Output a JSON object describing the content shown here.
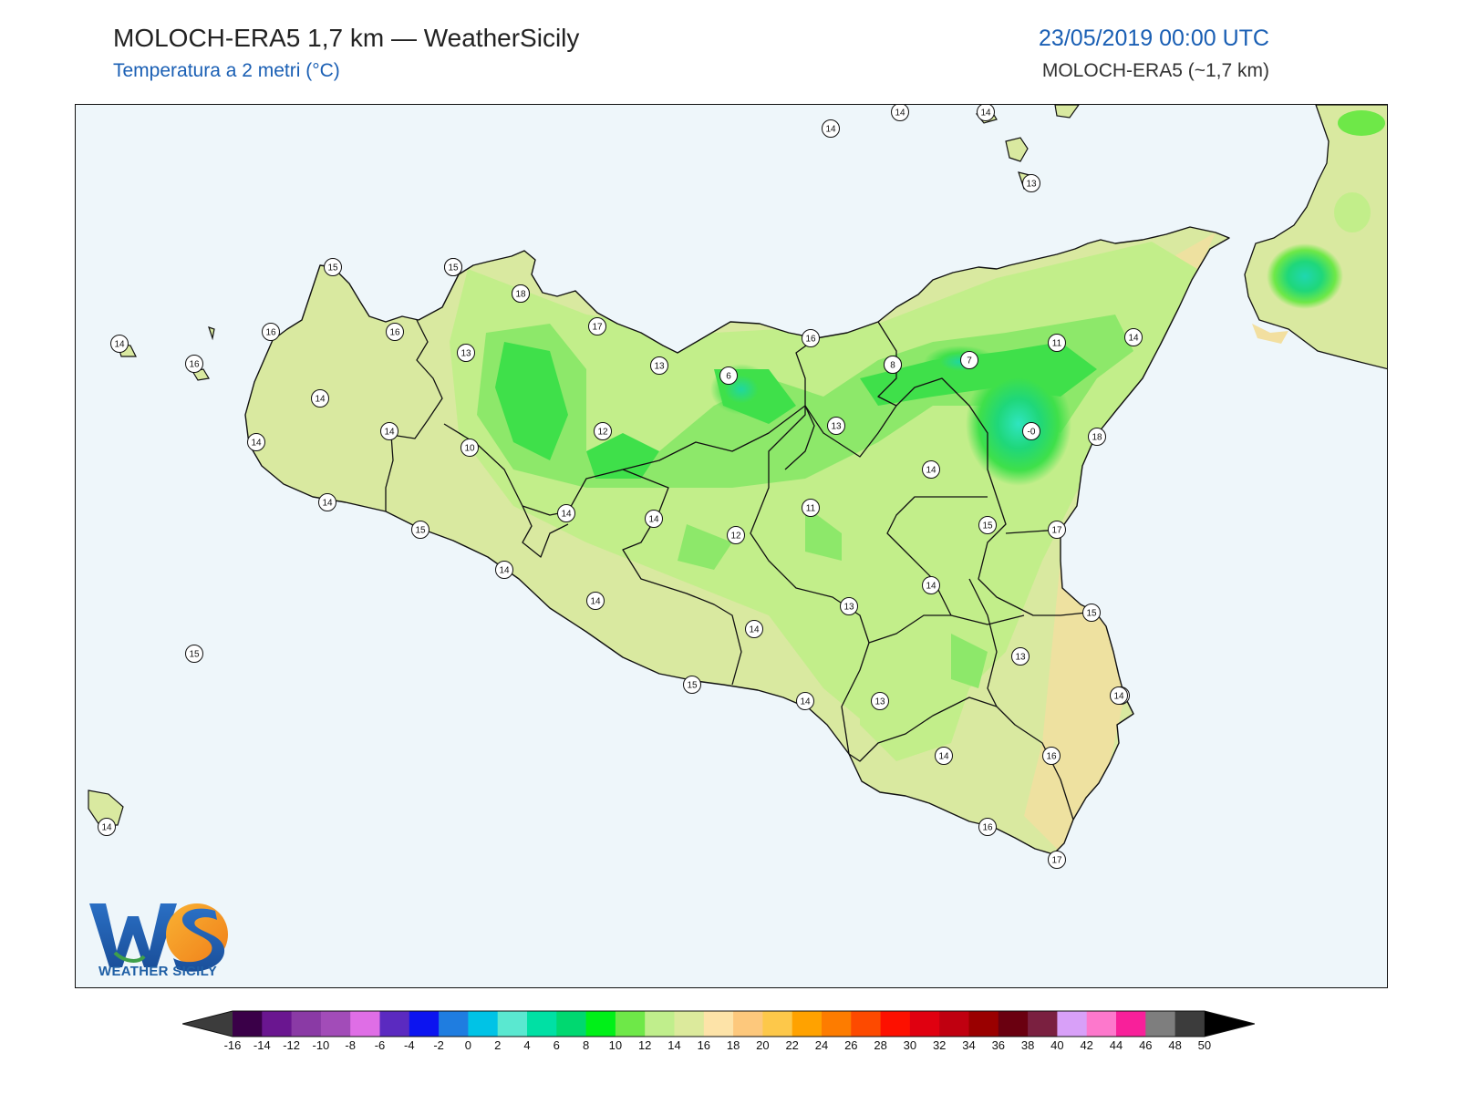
{
  "header": {
    "title": "MOLOCH-ERA5 1,7 km — WeatherSicily",
    "subtitle": "Temperatura a 2 metri (°C)",
    "datetime": "23/05/2019 00:00 UTC",
    "model": "MOLOCH-ERA5 (~1,7 km)"
  },
  "logo": {
    "letters": "WS",
    "text": "WEATHER SICILY"
  },
  "colors": {
    "sea": "#eef6fa",
    "land_base": "#d9e9a0",
    "land_warm": "#f2dfa0",
    "temp_12": "#c2ee8a",
    "temp_10": "#8de86a",
    "temp_8": "#3fe04a",
    "temp_6": "#1fd77a",
    "temp_4": "#2fe5c0",
    "border": "#111111"
  },
  "stations": [
    {
      "value": "14"
    },
    {
      "value": "14"
    },
    {
      "value": "14"
    },
    {
      "value": "13"
    },
    {
      "value": "15"
    },
    {
      "value": "16"
    },
    {
      "value": "14"
    },
    {
      "value": "16"
    },
    {
      "value": "15"
    },
    {
      "value": "15"
    },
    {
      "value": "16"
    },
    {
      "value": "16"
    },
    {
      "value": "15"
    },
    {
      "value": "18"
    },
    {
      "value": "17"
    },
    {
      "value": "13"
    },
    {
      "value": "13"
    },
    {
      "value": "6"
    },
    {
      "value": "8"
    },
    {
      "value": "16"
    },
    {
      "value": "8"
    },
    {
      "value": "7"
    },
    {
      "value": "11"
    },
    {
      "value": "14"
    },
    {
      "value": "14"
    },
    {
      "value": "14"
    },
    {
      "value": "14"
    },
    {
      "value": "12"
    },
    {
      "value": "10"
    },
    {
      "value": "13"
    },
    {
      "value": "-0"
    },
    {
      "value": "18"
    },
    {
      "value": "14"
    },
    {
      "value": "14"
    },
    {
      "value": "14"
    },
    {
      "value": "15"
    },
    {
      "value": "14"
    },
    {
      "value": "14"
    },
    {
      "value": "11"
    },
    {
      "value": "12"
    },
    {
      "value": "15"
    },
    {
      "value": "17"
    },
    {
      "value": "14"
    },
    {
      "value": "14"
    },
    {
      "value": "14"
    },
    {
      "value": "13"
    },
    {
      "value": "15"
    },
    {
      "value": "13"
    },
    {
      "value": "15"
    },
    {
      "value": "14"
    },
    {
      "value": "13"
    },
    {
      "value": "16"
    },
    {
      "value": "14"
    },
    {
      "value": "16"
    },
    {
      "value": "14"
    },
    {
      "value": "16"
    },
    {
      "value": "17"
    },
    {
      "value": "14"
    }
  ],
  "colorbar": {
    "labels": [
      "-16",
      "-14",
      "-12",
      "-10",
      "-8",
      "-6",
      "-4",
      "-2",
      "0",
      "2",
      "4",
      "6",
      "8",
      "10",
      "12",
      "14",
      "16",
      "18",
      "20",
      "22",
      "24",
      "26",
      "28",
      "30",
      "32",
      "34",
      "36",
      "38",
      "40",
      "42",
      "44",
      "46",
      "48",
      "50"
    ],
    "colors": [
      "#3a0048",
      "#6a1690",
      "#8a3aa5",
      "#a24cb8",
      "#df6ee6",
      "#5b2ac0",
      "#0c14f0",
      "#1f7de0",
      "#00c3e6",
      "#5ae8d0",
      "#00e0a4",
      "#00d870",
      "#00f018",
      "#6ee848",
      "#c0ee8c",
      "#dcea9c",
      "#fde3a8",
      "#fdc87c",
      "#fdc84a",
      "#ffa200",
      "#fd7c00",
      "#fd4a00",
      "#fd1000",
      "#e00010",
      "#c00010",
      "#9a0000",
      "#6a0010",
      "#7a2040",
      "#d8a0f8",
      "#fd78cc",
      "#f8209a",
      "#7e7e7e",
      "#3c3c3c"
    ],
    "under_color": "#3c3c3c",
    "over_color": "#000000"
  }
}
